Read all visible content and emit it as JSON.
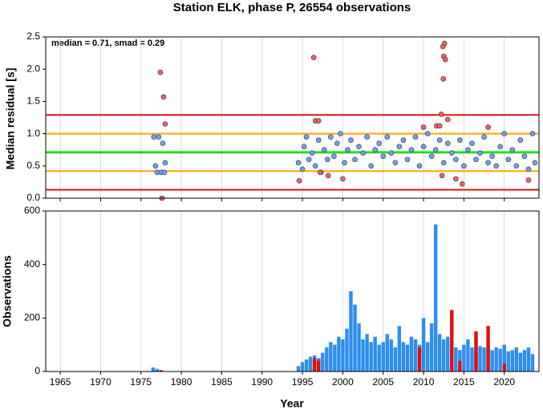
{
  "chart_data": [
    {
      "type": "scatter",
      "title": "Station ELK, phase P, 26554 observations",
      "ylabel": "Median residual [s]",
      "annotation": "median = 0.71, smad = 0.29",
      "xlim": [
        1963.2,
        2024.3
      ],
      "xticks": [
        1965,
        1970,
        1975,
        1980,
        1985,
        1990,
        1995,
        2000,
        2005,
        2010,
        2015,
        2020
      ],
      "ylim": [
        0,
        2.5
      ],
      "yticks": [
        {
          "value": 0,
          "label": "0.0"
        },
        {
          "value": 0.5,
          "label": "0.5"
        },
        {
          "value": 1,
          "label": "1.0"
        },
        {
          "value": 1.5,
          "label": "1.5"
        },
        {
          "value": 2,
          "label": "2.0"
        },
        {
          "value": 2.5,
          "label": "2.5"
        }
      ],
      "hlines": [
        {
          "value": 1.29,
          "color": "#e01010"
        },
        {
          "value": 1.0,
          "color": "#ffa500"
        },
        {
          "value": 0.71,
          "color": "#20e020"
        },
        {
          "value": 0.42,
          "color": "#ffa500"
        },
        {
          "value": 0.13,
          "color": "#e01010"
        }
      ],
      "grid": true,
      "series": [
        {
          "color": "#6fa0f0",
          "x": [
            1976.6,
            1976.8,
            1977.0,
            1977.2,
            1977.5,
            1977.7,
            1978.0,
            1977.9,
            1994.5,
            1995.0,
            1995.2,
            1995.5,
            1995.8,
            1996.2,
            1996.6,
            1997.0,
            1997.3,
            1997.7,
            1998.1,
            1998.5,
            1998.9,
            1999.3,
            1999.7,
            2000.2,
            2000.6,
            2001.0,
            2001.5,
            2002.0,
            2002.5,
            2003.0,
            2003.5,
            2004.0,
            2004.5,
            2005.0,
            2005.5,
            2006.0,
            2006.5,
            2007.0,
            2007.5,
            2008.0,
            2008.5,
            2009.0,
            2009.5,
            2010.0,
            2010.5,
            2011.0,
            2011.5,
            2012.0,
            2012.5,
            2013.0,
            2013.5,
            2014.0,
            2014.5,
            2015.0,
            2015.5,
            2016.0,
            2016.5,
            2017.0,
            2017.5,
            2018.0,
            2018.5,
            2019.0,
            2019.5,
            2020.0,
            2020.5,
            2021.0,
            2021.5,
            2022.0,
            2022.5,
            2023.0,
            2023.5,
            2023.8
          ],
          "values": [
            0.95,
            0.5,
            0.4,
            0.95,
            0.4,
            0.85,
            0.55,
            0.4,
            0.55,
            0.45,
            0.8,
            0.95,
            0.6,
            0.7,
            0.5,
            0.9,
            0.4,
            0.75,
            0.6,
            0.95,
            0.65,
            0.85,
            1.0,
            0.55,
            0.75,
            0.9,
            0.6,
            0.8,
            0.7,
            0.95,
            0.5,
            0.75,
            0.85,
            0.65,
            0.95,
            0.7,
            0.55,
            0.8,
            0.9,
            0.6,
            0.75,
            0.95,
            0.5,
            0.8,
            1.0,
            0.65,
            0.75,
            0.9,
            0.55,
            0.85,
            0.7,
            0.6,
            0.9,
            0.5,
            0.75,
            0.85,
            0.6,
            0.7,
            0.95,
            0.55,
            0.65,
            0.5,
            0.8,
            1.0,
            0.6,
            0.75,
            0.5,
            0.9,
            0.65,
            0.45,
            1.0,
            0.55
          ]
        },
        {
          "color": "#f06060",
          "x": [
            1977.4,
            1977.8,
            1978.0,
            1977.6,
            1994.6,
            1996.4,
            1996.6,
            1997.0,
            1997.2,
            1998.2,
            2000.0,
            2010.0,
            2011.6,
            2012.0,
            2012.3,
            2012.4,
            2012.6,
            2012.5,
            2012.7,
            2012.45,
            2012.2,
            2013.0,
            2014.0,
            2014.8,
            2018.0,
            2023.0
          ],
          "values": [
            1.95,
            1.57,
            1.15,
            0.0,
            0.27,
            2.18,
            1.2,
            1.2,
            0.4,
            0.35,
            0.3,
            1.1,
            1.12,
            1.12,
            0.35,
            2.35,
            2.4,
            2.2,
            2.15,
            1.85,
            1.3,
            1.22,
            0.3,
            0.22,
            1.1,
            0.28
          ]
        }
      ]
    },
    {
      "type": "bar",
      "ylabel": "Observations",
      "xlabel": "Year",
      "xlim": [
        1963.2,
        2024.3
      ],
      "xticks": [
        1965,
        1970,
        1975,
        1980,
        1985,
        1990,
        1995,
        2000,
        2005,
        2010,
        2015,
        2020
      ],
      "ylim": [
        0,
        600
      ],
      "yticks": [
        0,
        200,
        400,
        600
      ],
      "grid": true,
      "series": [
        {
          "color": "#2e8ef0",
          "x": [
            1976.5,
            1977.0,
            1994.5,
            1995.0,
            1995.5,
            1996.0,
            1996.5,
            1997.0,
            1997.5,
            1998.0,
            1998.5,
            1999.0,
            1999.5,
            2000.0,
            2000.5,
            2001.0,
            2001.5,
            2002.0,
            2002.5,
            2003.0,
            2003.5,
            2004.0,
            2004.5,
            2005.0,
            2005.5,
            2006.0,
            2006.5,
            2007.0,
            2007.5,
            2008.0,
            2008.5,
            2009.0,
            2009.5,
            2010.0,
            2010.5,
            2011.0,
            2011.5,
            2012.0,
            2012.5,
            2013.0,
            2013.5,
            2014.0,
            2014.5,
            2015.0,
            2015.5,
            2016.0,
            2016.5,
            2017.0,
            2017.5,
            2018.0,
            2018.5,
            2019.0,
            2019.5,
            2020.0,
            2020.5,
            2021.0,
            2021.5,
            2022.0,
            2022.5,
            2023.0,
            2023.5
          ],
          "values": [
            15,
            10,
            20,
            35,
            45,
            55,
            60,
            50,
            70,
            90,
            110,
            100,
            130,
            120,
            160,
            300,
            250,
            180,
            120,
            140,
            110,
            130,
            100,
            110,
            140,
            120,
            90,
            170,
            110,
            100,
            130,
            120,
            100,
            200,
            110,
            180,
            550,
            140,
            120,
            130,
            100,
            90,
            80,
            100,
            120,
            90,
            85,
            95,
            90,
            100,
            80,
            90,
            85,
            100,
            75,
            80,
            90,
            70,
            80,
            90,
            65
          ]
        },
        {
          "color": "#e01010",
          "x": [
            1977.5,
            1996.5,
            1997.0,
            2009.5,
            2013.5,
            2014.5,
            2016.5,
            2018.0,
            2020.0
          ],
          "values": [
            5,
            50,
            40,
            90,
            230,
            40,
            150,
            170,
            30
          ]
        }
      ]
    }
  ]
}
